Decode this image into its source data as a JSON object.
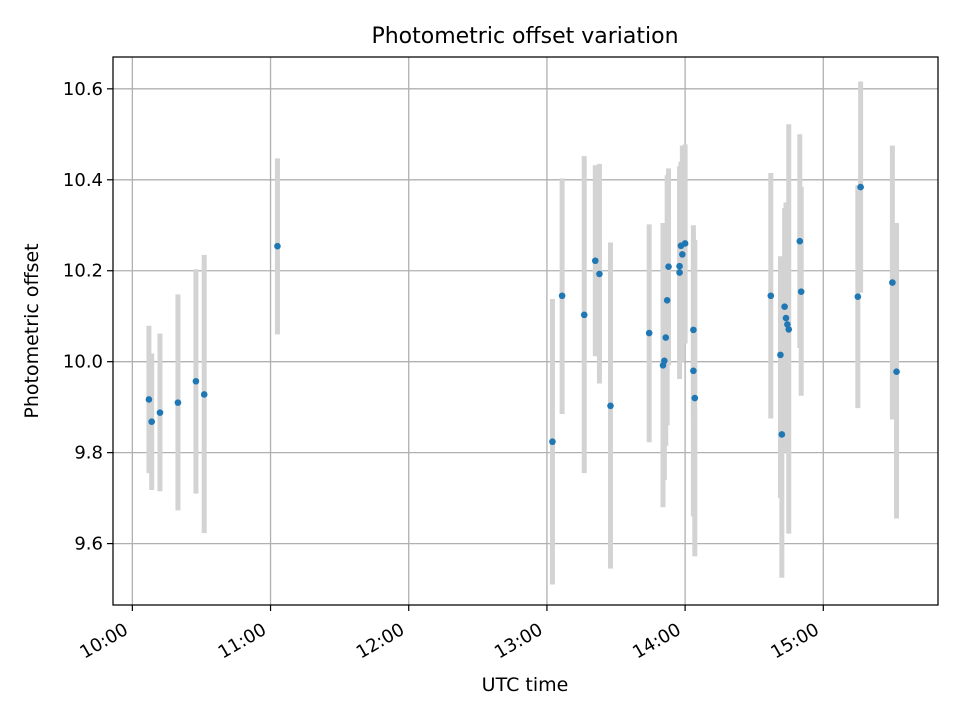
{
  "chart_data": {
    "type": "scatter",
    "title": "Photometric offset variation",
    "xlabel": "UTC time",
    "ylabel": "Photometric offset",
    "xlim": [
      9.86,
      15.83
    ],
    "ylim": [
      9.465,
      10.67
    ],
    "grid": true,
    "x_ticks": [
      {
        "value": 10,
        "label": "10:00"
      },
      {
        "value": 11,
        "label": "11:00"
      },
      {
        "value": 12,
        "label": "12:00"
      },
      {
        "value": 13,
        "label": "13:00"
      },
      {
        "value": 14,
        "label": "14:00"
      },
      {
        "value": 15,
        "label": "15:00"
      }
    ],
    "y_ticks": [
      {
        "value": 9.6,
        "label": "9.6"
      },
      {
        "value": 9.8,
        "label": "9.8"
      },
      {
        "value": 10.0,
        "label": "10.0"
      },
      {
        "value": 10.2,
        "label": "10.2"
      },
      {
        "value": 10.4,
        "label": "10.4"
      },
      {
        "value": 10.6,
        "label": "10.6"
      }
    ],
    "colors": {
      "points": "#1f77b4",
      "errorbars": "#d3d3d3",
      "grid": "#b0b0b0"
    },
    "points": [
      {
        "x": 10.12,
        "y": 9.917,
        "lo": 9.755,
        "hi": 10.079
      },
      {
        "x": 10.14,
        "y": 9.868,
        "lo": 9.718,
        "hi": 10.018
      },
      {
        "x": 10.2,
        "y": 9.888,
        "lo": 9.715,
        "hi": 10.062
      },
      {
        "x": 10.33,
        "y": 9.91,
        "lo": 9.673,
        "hi": 10.148
      },
      {
        "x": 10.46,
        "y": 9.957,
        "lo": 9.71,
        "hi": 10.203
      },
      {
        "x": 10.52,
        "y": 9.928,
        "lo": 9.623,
        "hi": 10.235
      },
      {
        "x": 11.05,
        "y": 10.254,
        "lo": 10.06,
        "hi": 10.447
      },
      {
        "x": 13.04,
        "y": 9.824,
        "lo": 9.51,
        "hi": 10.138
      },
      {
        "x": 13.11,
        "y": 10.145,
        "lo": 9.885,
        "hi": 10.403
      },
      {
        "x": 13.27,
        "y": 10.103,
        "lo": 9.755,
        "hi": 10.452
      },
      {
        "x": 13.35,
        "y": 10.222,
        "lo": 10.012,
        "hi": 10.432
      },
      {
        "x": 13.38,
        "y": 10.193,
        "lo": 9.952,
        "hi": 10.435
      },
      {
        "x": 13.46,
        "y": 9.903,
        "lo": 9.545,
        "hi": 10.262
      },
      {
        "x": 13.74,
        "y": 10.063,
        "lo": 9.823,
        "hi": 10.302
      },
      {
        "x": 13.84,
        "y": 9.992,
        "lo": 9.68,
        "hi": 10.305
      },
      {
        "x": 13.85,
        "y": 10.002,
        "lo": 9.74,
        "hi": 10.264
      },
      {
        "x": 13.86,
        "y": 10.053,
        "lo": 9.815,
        "hi": 10.291
      },
      {
        "x": 13.87,
        "y": 10.135,
        "lo": 9.86,
        "hi": 10.41
      },
      {
        "x": 13.88,
        "y": 10.209,
        "lo": 9.992,
        "hi": 10.425
      },
      {
        "x": 13.96,
        "y": 10.21,
        "lo": 10.005,
        "hi": 10.416
      },
      {
        "x": 13.96,
        "y": 10.196,
        "lo": 9.962,
        "hi": 10.43
      },
      {
        "x": 13.97,
        "y": 10.255,
        "lo": 10.03,
        "hi": 10.44
      },
      {
        "x": 13.98,
        "y": 10.236,
        "lo": 10.0,
        "hi": 10.475
      },
      {
        "x": 14.0,
        "y": 10.26,
        "lo": 10.04,
        "hi": 10.478
      },
      {
        "x": 14.06,
        "y": 10.07,
        "lo": 9.87,
        "hi": 10.27
      },
      {
        "x": 14.06,
        "y": 9.98,
        "lo": 9.66,
        "hi": 10.3
      },
      {
        "x": 14.07,
        "y": 9.92,
        "lo": 9.572,
        "hi": 10.268
      },
      {
        "x": 14.62,
        "y": 10.145,
        "lo": 9.875,
        "hi": 10.415
      },
      {
        "x": 14.69,
        "y": 10.015,
        "lo": 9.7,
        "hi": 10.232
      },
      {
        "x": 14.7,
        "y": 9.84,
        "lo": 9.525,
        "hi": 10.155
      },
      {
        "x": 14.72,
        "y": 10.121,
        "lo": 9.86,
        "hi": 10.338
      },
      {
        "x": 14.73,
        "y": 10.096,
        "lo": 9.8,
        "hi": 10.35
      },
      {
        "x": 14.74,
        "y": 10.082,
        "lo": 9.845,
        "hi": 10.255
      },
      {
        "x": 14.75,
        "y": 10.071,
        "lo": 9.622,
        "hi": 10.522
      },
      {
        "x": 14.83,
        "y": 10.265,
        "lo": 10.03,
        "hi": 10.5
      },
      {
        "x": 14.84,
        "y": 10.154,
        "lo": 9.925,
        "hi": 10.385
      },
      {
        "x": 15.25,
        "y": 10.143,
        "lo": 9.898,
        "hi": 10.388
      },
      {
        "x": 15.27,
        "y": 10.384,
        "lo": 10.152,
        "hi": 10.616
      },
      {
        "x": 15.5,
        "y": 10.174,
        "lo": 9.873,
        "hi": 10.475
      },
      {
        "x": 15.53,
        "y": 9.978,
        "lo": 9.655,
        "hi": 10.305
      }
    ]
  }
}
